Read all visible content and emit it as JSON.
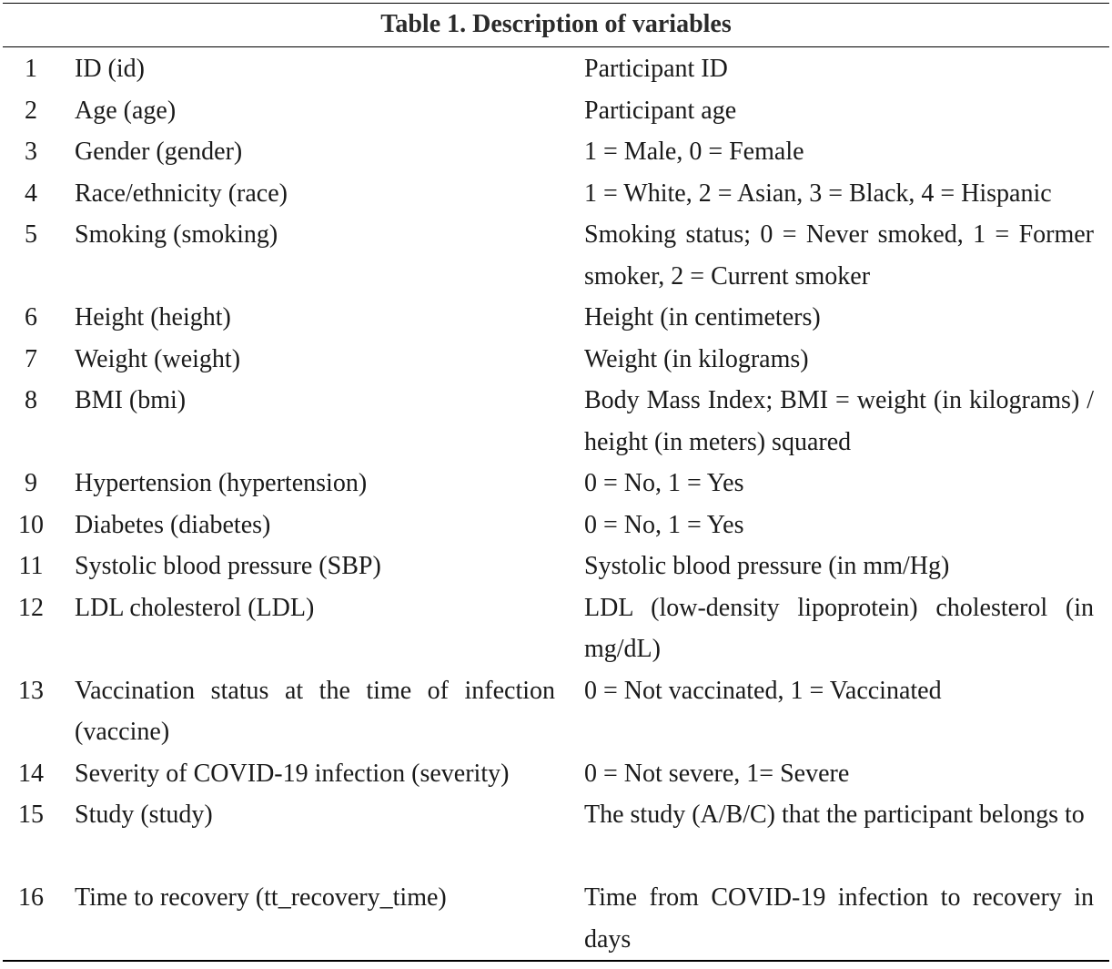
{
  "table": {
    "caption": "Table 1. Description of variables",
    "rows": [
      {
        "num": "1",
        "variable": "ID (id)",
        "description": "Participant ID",
        "lines": 1
      },
      {
        "num": "2",
        "variable": "Age (age)",
        "description": "Participant age",
        "lines": 1
      },
      {
        "num": "3",
        "variable": "Gender (gender)",
        "description": "1 = Male, 0 = Female",
        "lines": 1
      },
      {
        "num": "4",
        "variable": "Race/ethnicity (race)",
        "description": "1 = White, 2 = Asian, 3 = Black, 4 = Hispanic",
        "lines": 1
      },
      {
        "num": "5",
        "variable": "Smoking (smoking)",
        "description": "Smoking status; 0 = Never smoked, 1 = Former smoker, 2 = Current smoker",
        "lines": 2
      },
      {
        "num": "6",
        "variable": "Height (height)",
        "description": "Height (in centimeters)",
        "lines": 1
      },
      {
        "num": "7",
        "variable": "Weight (weight)",
        "description": "Weight (in kilograms)",
        "lines": 1
      },
      {
        "num": "8",
        "variable": "BMI (bmi)",
        "description": "Body Mass Index; BMI = weight (in kilograms) / height (in meters) squared",
        "lines": 2
      },
      {
        "num": "9",
        "variable": "Hypertension (hypertension)",
        "description": "0 = No, 1 = Yes",
        "lines": 1
      },
      {
        "num": "10",
        "variable": "Diabetes (diabetes)",
        "description": "0 = No, 1 = Yes",
        "lines": 1
      },
      {
        "num": "11",
        "variable": "Systolic blood pressure (SBP)",
        "description": "Systolic blood pressure (in mm/Hg)",
        "lines": 1
      },
      {
        "num": "12",
        "variable": "LDL cholesterol (LDL)",
        "description": "LDL (low-density lipoprotein) cholesterol (in mg/dL)",
        "lines": 2
      },
      {
        "num": "13",
        "variable": "Vaccination status at the time of infection (vaccine)",
        "description": "0 = Not vaccinated, 1 = Vaccinated",
        "lines": 2
      },
      {
        "num": "14",
        "variable": "Severity of COVID-19 infection (severity)",
        "description": "0 = Not severe, 1= Severe",
        "lines": 1
      },
      {
        "num": "15",
        "variable": "Study (study)",
        "description": "The study (A/B/C) that the participant belongs to",
        "lines": 2
      },
      {
        "num": "16",
        "variable": "Time to recovery (tt_recovery_time)",
        "description": "Time from COVID-19 infection to recovery in days",
        "lines": 2
      }
    ]
  }
}
